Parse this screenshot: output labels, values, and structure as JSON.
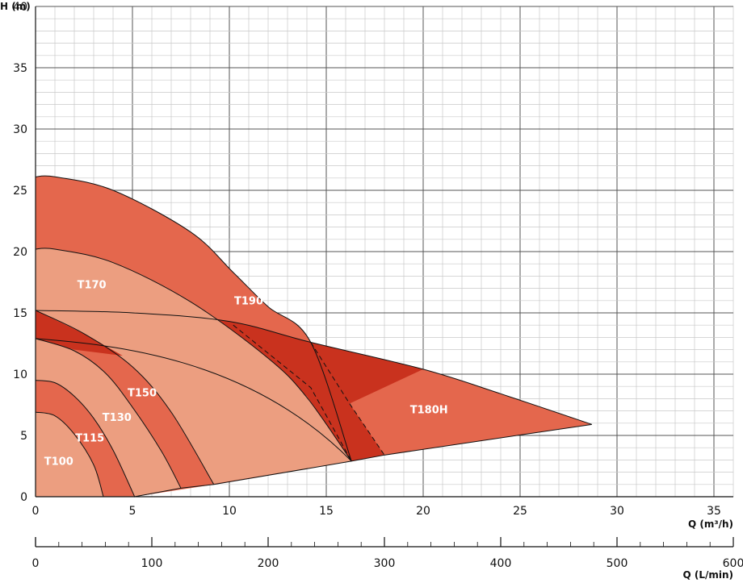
{
  "chart_data": {
    "type": "area",
    "title": "",
    "ylabel": "H (m)",
    "xlabel": "Q (m³/h)",
    "xlabel_secondary": "Q (L/min)",
    "xlim": [
      0,
      36
    ],
    "ylim": [
      0,
      40
    ],
    "xlim_secondary": [
      0,
      600
    ],
    "x_ticks": [
      0,
      5,
      10,
      15,
      20,
      25,
      30,
      35
    ],
    "y_ticks": [
      0,
      5,
      10,
      15,
      20,
      25,
      30,
      35,
      40
    ],
    "x_ticks_secondary": [
      0,
      100,
      200,
      300,
      400,
      500,
      600
    ],
    "grid": true,
    "legend": "none",
    "colors": {
      "light": "#ec9e80",
      "medium": "#e4674d",
      "dark": "#c9321e",
      "grid_major": "#555555",
      "grid_minor": "#c8c8c8"
    },
    "series": [
      {
        "name": "T100",
        "x": [
          0,
          1,
          2,
          3,
          3.5
        ],
        "values": [
          6.9,
          6.6,
          5.1,
          2.6,
          0
        ]
      },
      {
        "name": "T115",
        "x": [
          0,
          1,
          2,
          3,
          4,
          5,
          5.1
        ],
        "values": [
          9.5,
          9.3,
          8.2,
          6.4,
          3.8,
          0.4,
          0
        ]
      },
      {
        "name": "T130",
        "x": [
          0,
          2,
          3.6,
          5,
          6.5,
          7.5
        ],
        "values": [
          12.9,
          11.9,
          10.1,
          7.3,
          3.7,
          0.7
        ]
      },
      {
        "name": "T150",
        "x": [
          0,
          2.5,
          5,
          7,
          9.2
        ],
        "values": [
          15.2,
          13.3,
          10.6,
          6.9,
          1.0
        ]
      },
      {
        "name": "T170",
        "x": [
          0,
          1,
          4,
          8,
          12,
          14,
          16.3
        ],
        "values": [
          20.2,
          20.2,
          19.1,
          15.9,
          11.3,
          8.1,
          2.9
        ]
      },
      {
        "name": "T190",
        "x": [
          0,
          1,
          4,
          8,
          10.2,
          12,
          14.2,
          16.3
        ],
        "values": [
          26.1,
          26.1,
          25.0,
          21.6,
          18.3,
          15.5,
          12.6,
          2.9
        ]
      },
      {
        "name": "T180H",
        "x": [
          0,
          5,
          10,
          14.2,
          20,
          24,
          28.7
        ],
        "values": [
          15.2,
          15.0,
          14.3,
          12.6,
          10.4,
          8.4,
          5.9
        ]
      }
    ],
    "annotations": [
      "T100",
      "T115",
      "T130",
      "T150",
      "T170",
      "T190",
      "T180H"
    ]
  }
}
